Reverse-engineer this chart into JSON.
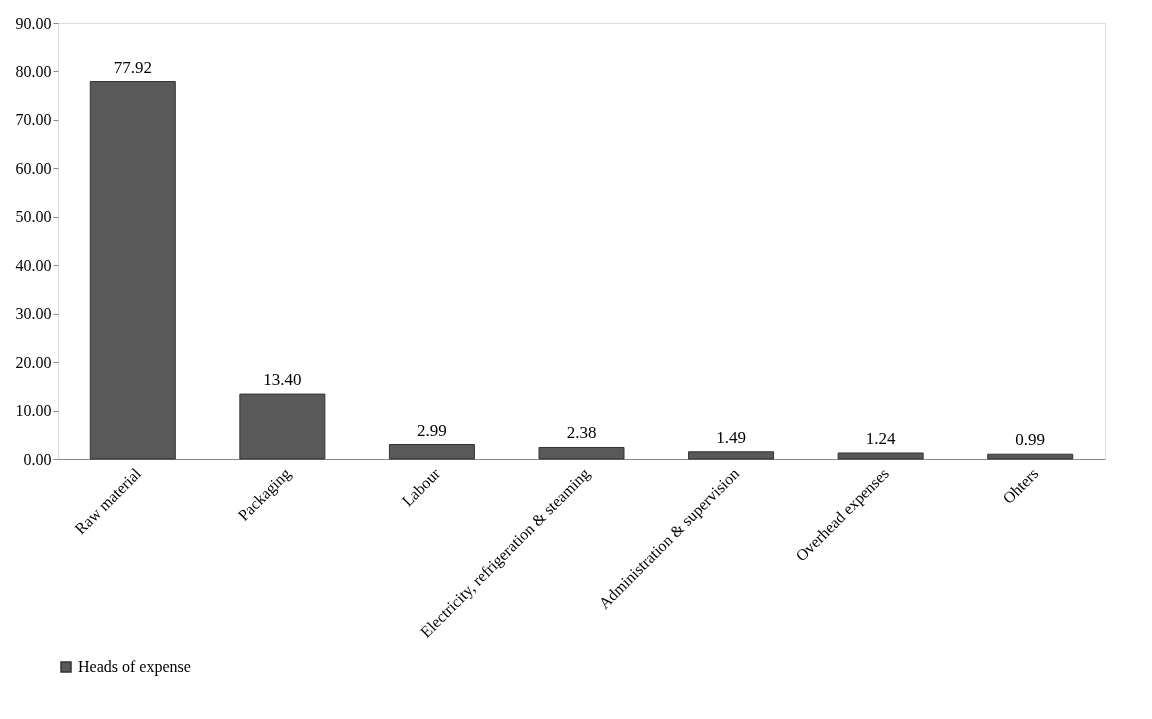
{
  "chart_data": {
    "type": "bar",
    "categories": [
      "Raw material",
      "Packaging",
      "Labour",
      "Electricity, refrigeration & steaming",
      "Administration & supervision",
      "Overhead expenses",
      "Ohters"
    ],
    "series": [
      {
        "name": "Heads of expense",
        "color": "#595959",
        "values": [
          77.92,
          13.4,
          2.99,
          2.38,
          1.49,
          1.24,
          0.99
        ],
        "value_labels": [
          "77.92",
          "13.40",
          "2.99",
          "2.38",
          "1.49",
          "1.24",
          "0.99"
        ]
      }
    ],
    "ylim": [
      0,
      90
    ],
    "yticks": [
      {
        "value": 0,
        "label": "0.00"
      },
      {
        "value": 10,
        "label": "10.00"
      },
      {
        "value": 20,
        "label": "20.00"
      },
      {
        "value": 30,
        "label": "30.00"
      },
      {
        "value": 40,
        "label": "40.00"
      },
      {
        "value": 50,
        "label": "50.00"
      },
      {
        "value": 60,
        "label": "60.00"
      },
      {
        "value": 70,
        "label": "70.00"
      },
      {
        "value": 80,
        "label": "80.00"
      },
      {
        "value": 90,
        "label": "90.00"
      }
    ],
    "grid": false,
    "legend": "bottom"
  }
}
